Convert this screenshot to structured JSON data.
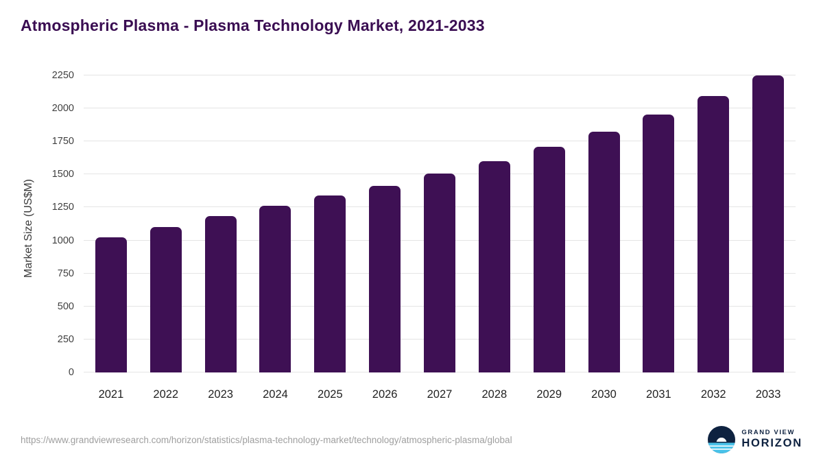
{
  "header": {
    "title": "Atmospheric Plasma - Plasma Technology Market, 2021-2033"
  },
  "chart_data": {
    "type": "bar",
    "title": "Atmospheric Plasma - Plasma Technology Market, 2021-2033",
    "categories": [
      "2021",
      "2022",
      "2023",
      "2024",
      "2025",
      "2026",
      "2027",
      "2028",
      "2029",
      "2030",
      "2031",
      "2032",
      "2033"
    ],
    "values": [
      1025,
      1100,
      1185,
      1265,
      1340,
      1415,
      1505,
      1600,
      1710,
      1825,
      1955,
      2095,
      2250
    ],
    "xlabel": "",
    "ylabel": "Market Size (US$M)",
    "ylim": [
      0,
      2250
    ],
    "yticks": [
      0,
      250,
      500,
      750,
      1000,
      1250,
      1500,
      1750,
      2000,
      2250
    ],
    "grid": true,
    "legend": "none",
    "bar_color": "#3e1054"
  },
  "footer": {
    "source_url": "https://www.grandviewresearch.com/horizon/statistics/plasma-technology-market/technology/atmospheric-plasma/global",
    "logo": {
      "line1": "GRAND VIEW",
      "line2": "HORIZON"
    }
  },
  "colors": {
    "bar": "#3e1054",
    "title": "#3a0d52",
    "logo_navy": "#0e2240",
    "logo_blue": "#49c2e9",
    "gridline": "#e4e4e4"
  }
}
